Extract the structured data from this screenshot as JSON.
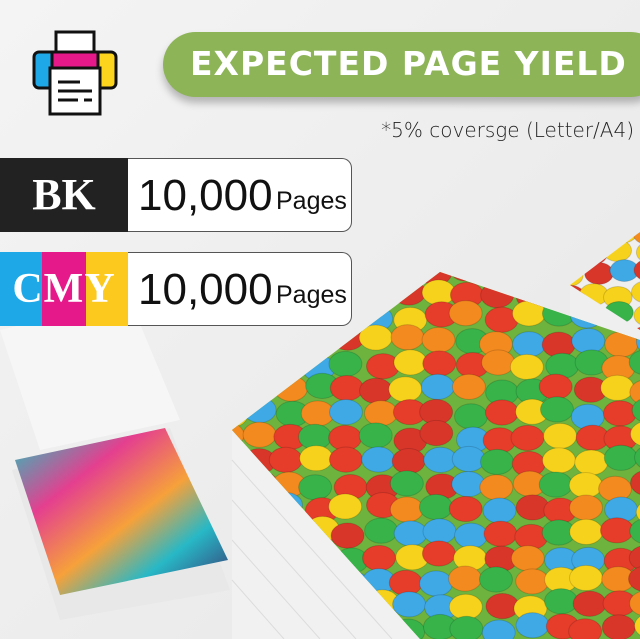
{
  "banner": {
    "title": "EXPECTED PAGE YIELD",
    "color": "#8db457"
  },
  "note": "*5% coversge (Letter/A4)",
  "yields": [
    {
      "label": "BK",
      "value": "10,000",
      "unit": "Pages",
      "colors": [
        "#222222"
      ]
    },
    {
      "label": "CMY",
      "letters": [
        "C",
        "M",
        "Y"
      ],
      "value": "10,000",
      "unit": "Pages",
      "colors": [
        "#1ea8e8",
        "#e6198a",
        "#fcc91e"
      ]
    }
  ],
  "icons": [
    "printer-icon"
  ],
  "candy_colors": [
    "#e63c2a",
    "#f7d21c",
    "#37b34a",
    "#f28a1f",
    "#3fa9e6",
    "#d9362a"
  ]
}
